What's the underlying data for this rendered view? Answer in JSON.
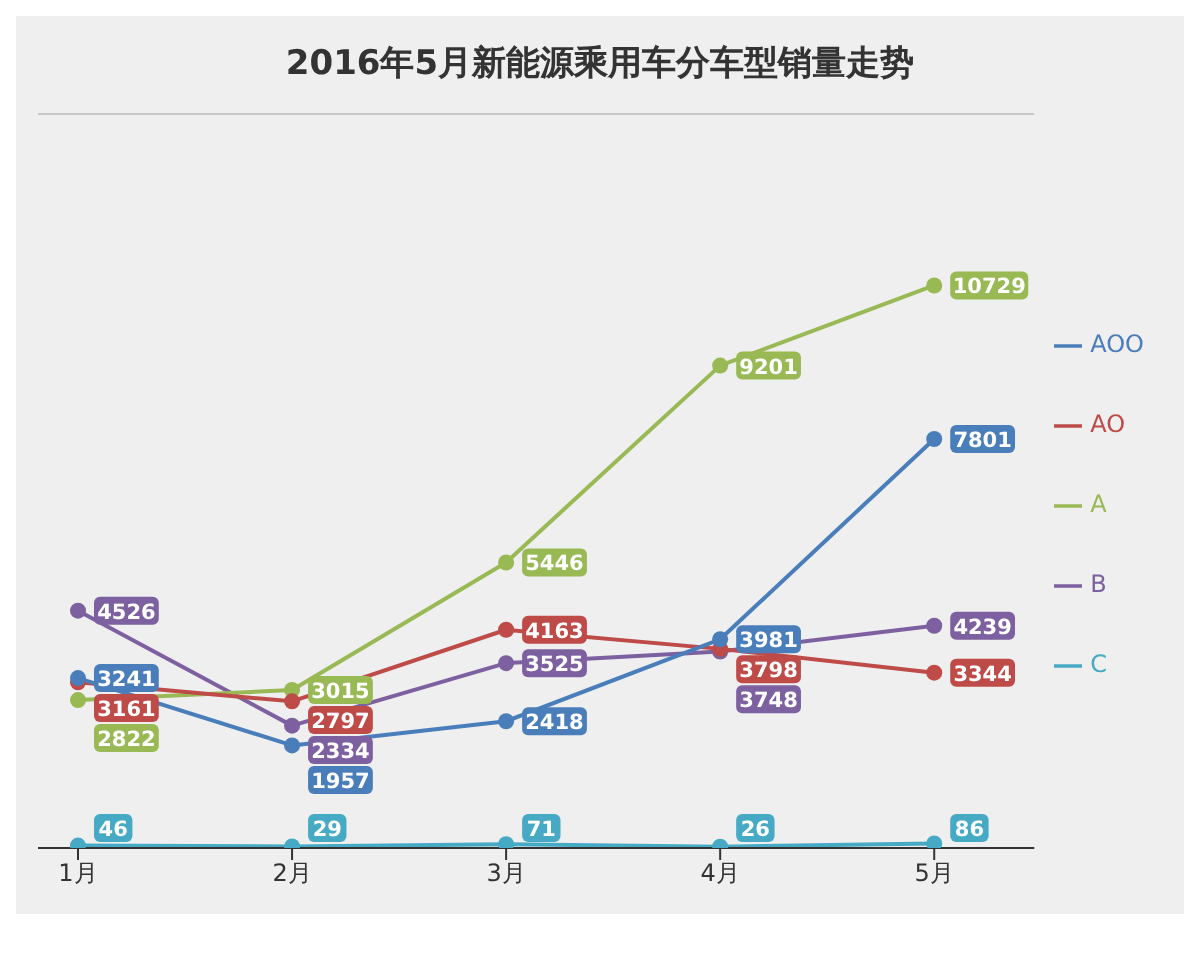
{
  "chart_data": {
    "type": "line",
    "title": "2016年5月新能源乘用车分车型销量走势",
    "categories": [
      "1月",
      "2月",
      "3月",
      "4月",
      "5月"
    ],
    "series": [
      {
        "name": "AOO",
        "color": "#4a7ebb",
        "values": [
          3241,
          1957,
          2418,
          3981,
          7801
        ]
      },
      {
        "name": "AO",
        "color": "#be4b48",
        "values": [
          3161,
          2797,
          4163,
          3798,
          3344
        ]
      },
      {
        "name": "A",
        "color": "#98b954",
        "values": [
          2822,
          3015,
          5446,
          9201,
          10729
        ]
      },
      {
        "name": "B",
        "color": "#7d60a0",
        "values": [
          4526,
          2334,
          3525,
          3748,
          4239
        ]
      },
      {
        "name": "C",
        "color": "#46aac5",
        "values": [
          46,
          29,
          71,
          26,
          86
        ]
      }
    ],
    "ylim": [
      0,
      14000
    ],
    "tick_labels": "x",
    "grid": "y",
    "legend": "right",
    "marker": "circle",
    "data_labels": true
  }
}
